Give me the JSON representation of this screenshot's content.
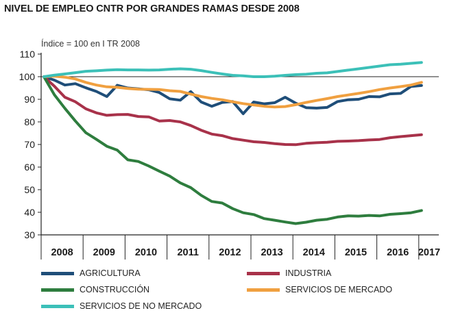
{
  "chart_data": {
    "type": "line",
    "title": "NIVEL DE EMPLEO CNTR POR GRANDES RAMAS DESDE 2008",
    "subtitle": "Índice = 100 en I TR 2008",
    "xlabel": "",
    "ylabel": "",
    "ylim": [
      30,
      110
    ],
    "yticks": [
      30,
      40,
      50,
      60,
      70,
      80,
      90,
      100,
      110
    ],
    "x_year_labels": [
      "2008",
      "2009",
      "2010",
      "2011",
      "2012",
      "2013",
      "2014",
      "2015",
      "2016",
      "2017"
    ],
    "x_quarters": [
      "2008 I",
      "2008 II",
      "2008 III",
      "2008 IV",
      "2009 I",
      "2009 II",
      "2009 III",
      "2009 IV",
      "2010 I",
      "2010 II",
      "2010 III",
      "2010 IV",
      "2011 I",
      "2011 II",
      "2011 III",
      "2011 IV",
      "2012 I",
      "2012 II",
      "2012 III",
      "2012 IV",
      "2013 I",
      "2013 II",
      "2013 III",
      "2013 IV",
      "2014 I",
      "2014 II",
      "2014 III",
      "2014 IV",
      "2015 I",
      "2015 II",
      "2015 III",
      "2015 IV",
      "2016 I",
      "2016 II",
      "2016 III",
      "2016 IV",
      "2017 I"
    ],
    "reference_line": 100,
    "grid": false,
    "legend_position": "bottom",
    "series": [
      {
        "name": "AGRICULTURA",
        "color": "#1f4e79",
        "values": [
          100,
          98.5,
          96.3,
          96.9,
          95.1,
          93.5,
          91.2,
          96.2,
          95,
          94.6,
          94.2,
          93,
          90.2,
          89.6,
          93.4,
          88.8,
          86.9,
          88.6,
          89,
          83.6,
          88.8,
          88,
          88.5,
          90.9,
          88.3,
          86.3,
          86.1,
          86.4,
          89,
          89.8,
          90,
          91.2,
          91.1,
          92.4,
          92.6,
          95.7,
          96.1
        ]
      },
      {
        "name": "INDUSTRIA",
        "color": "#a8324a",
        "values": [
          100,
          95.8,
          90.9,
          88.9,
          85.8,
          84,
          82.9,
          83.2,
          83.3,
          82.4,
          82.2,
          80.4,
          80.6,
          80,
          78.4,
          76.3,
          74.6,
          73.9,
          72.6,
          71.9,
          71.2,
          70.9,
          70.4,
          70,
          69.9,
          70.5,
          70.8,
          71,
          71.4,
          71.5,
          71.7,
          72,
          72.2,
          73,
          73.5,
          73.9,
          74.3
        ]
      },
      {
        "name": "CONSTRUCCIÓN",
        "color": "#2e7d3e",
        "values": [
          100,
          92,
          86,
          80.4,
          75.2,
          72.3,
          69.2,
          67.5,
          63.2,
          62.5,
          60.5,
          58.2,
          56,
          53,
          50.9,
          47.5,
          44.8,
          44.1,
          41.6,
          39.8,
          39,
          37.2,
          36.5,
          35.7,
          35,
          35.6,
          36.5,
          36.9,
          37.9,
          38.4,
          38.3,
          38.6,
          38.4,
          39.1,
          39.4,
          39.8,
          40.8
        ]
      },
      {
        "name": "SERVICIOS DE MERCADO",
        "color": "#f0a040",
        "values": [
          100,
          100.2,
          99.8,
          99,
          97.5,
          96.3,
          95.5,
          95.3,
          94.8,
          94.5,
          94.4,
          94.3,
          93.8,
          93.5,
          92.3,
          91.2,
          90.4,
          89.8,
          88.9,
          88.1,
          87.5,
          86.9,
          86.6,
          86.8,
          87.6,
          88.6,
          89.5,
          90.3,
          91.2,
          91.9,
          92.6,
          93.4,
          94.3,
          95,
          95.6,
          96.3,
          97.5
        ]
      },
      {
        "name": "SERVICIOS DE NO MERCADO",
        "color": "#3cc0b8",
        "values": [
          100,
          100.7,
          101.2,
          101.8,
          102.4,
          102.6,
          102.9,
          103.1,
          103,
          103,
          102.9,
          103,
          103.3,
          103.5,
          103.3,
          102.7,
          101.9,
          101.2,
          100.6,
          100.4,
          100,
          100,
          100.2,
          100.6,
          100.9,
          101.1,
          101.5,
          101.7,
          102.3,
          102.9,
          103.5,
          104.1,
          104.7,
          105.3,
          105.5,
          105.9,
          106.3
        ]
      }
    ]
  }
}
